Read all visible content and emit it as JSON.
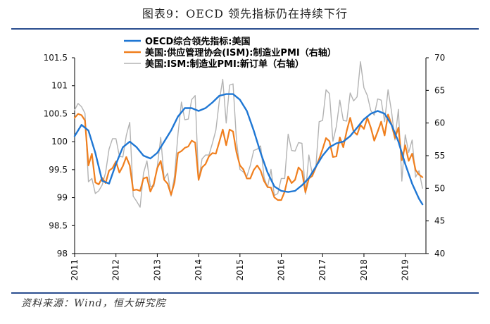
{
  "title": "图表9：OECD 领先指标仍在持续下行",
  "source": "资料来源：Wind，恒大研究院",
  "chart_data": {
    "type": "line",
    "title": "图表9：OECD 领先指标仍在持续下行",
    "x_axis": {
      "type": "date",
      "range": [
        "2011-01",
        "2019-07"
      ],
      "tick_labels": [
        "2011",
        "2012",
        "2013",
        "2014",
        "2015",
        "2016",
        "2017",
        "2018",
        "2019"
      ]
    },
    "y_left": {
      "range": [
        98,
        101.5
      ],
      "ticks": [
        "98",
        "98.5",
        "99",
        "99.5",
        "100",
        "100.5",
        "101",
        "101.5"
      ]
    },
    "y_right": {
      "range": [
        40,
        70
      ],
      "ticks": [
        "40",
        "45",
        "50",
        "55",
        "60",
        "65",
        "70"
      ]
    },
    "legend_position": "top-left",
    "grid": false,
    "colors": {
      "oecd": "#1f77d4",
      "ism_pmi": "#f07f1e",
      "new_orders": "#b3b3b3"
    },
    "series": [
      {
        "name": "OECD综合领先指标:美国",
        "axis": "left",
        "color": "#1f77d4",
        "x": [
          "2011-01",
          "2011-03",
          "2011-05",
          "2011-07",
          "2011-09",
          "2011-11",
          "2012-01",
          "2012-03",
          "2012-05",
          "2012-07",
          "2012-09",
          "2012-11",
          "2013-01",
          "2013-03",
          "2013-05",
          "2013-07",
          "2013-09",
          "2013-11",
          "2014-01",
          "2014-03",
          "2014-05",
          "2014-07",
          "2014-09",
          "2014-11",
          "2015-01",
          "2015-03",
          "2015-05",
          "2015-07",
          "2015-09",
          "2015-11",
          "2016-01",
          "2016-03",
          "2016-05",
          "2016-07",
          "2016-09",
          "2016-11",
          "2017-01",
          "2017-03",
          "2017-05",
          "2017-07",
          "2017-09",
          "2017-11",
          "2018-01",
          "2018-03",
          "2018-05",
          "2018-07",
          "2018-09",
          "2018-11",
          "2019-01",
          "2019-03",
          "2019-05",
          "2019-06"
        ],
        "values": [
          100.1,
          100.3,
          100.2,
          99.8,
          99.3,
          99.25,
          99.6,
          99.9,
          100.0,
          99.9,
          99.75,
          99.7,
          99.8,
          100.0,
          100.2,
          100.45,
          100.6,
          100.6,
          100.55,
          100.6,
          100.7,
          100.82,
          100.85,
          100.85,
          100.75,
          100.55,
          100.2,
          99.8,
          99.45,
          99.2,
          99.12,
          99.1,
          99.12,
          99.22,
          99.35,
          99.55,
          99.75,
          99.9,
          99.97,
          100.0,
          100.1,
          100.25,
          100.4,
          100.5,
          100.55,
          100.5,
          100.3,
          100.0,
          99.6,
          99.25,
          98.98,
          98.88
        ]
      },
      {
        "name": "美国:供应管理协会(ISM):制造业PMI（右轴）",
        "axis": "right",
        "color": "#f07f1e",
        "x": [
          "2011-01",
          "2011-02",
          "2011-03",
          "2011-04",
          "2011-05",
          "2011-06",
          "2011-07",
          "2011-08",
          "2011-09",
          "2011-10",
          "2011-11",
          "2011-12",
          "2012-01",
          "2012-02",
          "2012-03",
          "2012-04",
          "2012-05",
          "2012-06",
          "2012-07",
          "2012-08",
          "2012-09",
          "2012-10",
          "2012-11",
          "2012-12",
          "2013-01",
          "2013-02",
          "2013-03",
          "2013-04",
          "2013-05",
          "2013-06",
          "2013-07",
          "2013-08",
          "2013-09",
          "2013-10",
          "2013-11",
          "2013-12",
          "2014-01",
          "2014-02",
          "2014-03",
          "2014-04",
          "2014-05",
          "2014-06",
          "2014-07",
          "2014-08",
          "2014-09",
          "2014-10",
          "2014-11",
          "2014-12",
          "2015-01",
          "2015-02",
          "2015-03",
          "2015-04",
          "2015-05",
          "2015-06",
          "2015-07",
          "2015-08",
          "2015-09",
          "2015-10",
          "2015-11",
          "2015-12",
          "2016-01",
          "2016-02",
          "2016-03",
          "2016-04",
          "2016-05",
          "2016-06",
          "2016-07",
          "2016-08",
          "2016-09",
          "2016-10",
          "2016-11",
          "2016-12",
          "2017-01",
          "2017-02",
          "2017-03",
          "2017-04",
          "2017-05",
          "2017-06",
          "2017-07",
          "2017-08",
          "2017-09",
          "2017-10",
          "2017-11",
          "2017-12",
          "2018-01",
          "2018-02",
          "2018-03",
          "2018-04",
          "2018-05",
          "2018-06",
          "2018-07",
          "2018-08",
          "2018-09",
          "2018-10",
          "2018-11",
          "2018-12",
          "2019-01",
          "2019-02",
          "2019-03",
          "2019-04",
          "2019-05",
          "2019-06"
        ],
        "values": [
          60.8,
          61.4,
          61.2,
          60.4,
          53.5,
          55.3,
          50.9,
          50.6,
          51.6,
          50.8,
          52.7,
          53.1,
          54.1,
          52.4,
          53.4,
          54.8,
          53.5,
          49.7,
          49.8,
          49.6,
          51.5,
          51.7,
          49.5,
          50.7,
          53.1,
          54.2,
          51.3,
          50.7,
          49.0,
          50.9,
          55.4,
          55.7,
          56.2,
          56.4,
          57.3,
          57.0,
          51.3,
          53.2,
          53.7,
          54.9,
          55.4,
          55.3,
          57.1,
          59.0,
          56.6,
          59.0,
          58.7,
          55.5,
          53.5,
          52.9,
          51.5,
          51.5,
          52.8,
          53.5,
          52.7,
          51.1,
          50.2,
          50.1,
          48.6,
          48.2,
          48.2,
          49.5,
          51.8,
          50.8,
          51.3,
          53.2,
          52.6,
          49.4,
          51.5,
          51.9,
          53.2,
          54.5,
          56.0,
          57.7,
          57.2,
          54.8,
          54.9,
          57.8,
          56.3,
          58.8,
          60.8,
          58.7,
          58.2,
          59.7,
          59.1,
          60.8,
          59.3,
          57.3,
          58.7,
          60.2,
          58.1,
          61.3,
          59.8,
          57.7,
          59.3,
          54.3,
          56.6,
          54.2,
          55.3,
          52.8,
          52.1,
          51.7
        ]
      },
      {
        "name": "美国:ISM:制造业PMI:新订单（右轴）",
        "axis": "right",
        "color": "#b3b3b3",
        "x": [
          "2011-01",
          "2011-02",
          "2011-03",
          "2011-04",
          "2011-05",
          "2011-06",
          "2011-07",
          "2011-08",
          "2011-09",
          "2011-10",
          "2011-11",
          "2011-12",
          "2012-01",
          "2012-02",
          "2012-03",
          "2012-04",
          "2012-05",
          "2012-06",
          "2012-07",
          "2012-08",
          "2012-09",
          "2012-10",
          "2012-11",
          "2012-12",
          "2013-01",
          "2013-02",
          "2013-03",
          "2013-04",
          "2013-05",
          "2013-06",
          "2013-07",
          "2013-08",
          "2013-09",
          "2013-10",
          "2013-11",
          "2013-12",
          "2014-01",
          "2014-02",
          "2014-03",
          "2014-04",
          "2014-05",
          "2014-06",
          "2014-07",
          "2014-08",
          "2014-09",
          "2014-10",
          "2014-11",
          "2014-12",
          "2015-01",
          "2015-02",
          "2015-03",
          "2015-04",
          "2015-05",
          "2015-06",
          "2015-07",
          "2015-08",
          "2015-09",
          "2015-10",
          "2015-11",
          "2015-12",
          "2016-01",
          "2016-02",
          "2016-03",
          "2016-04",
          "2016-05",
          "2016-06",
          "2016-07",
          "2016-08",
          "2016-09",
          "2016-10",
          "2016-11",
          "2016-12",
          "2017-01",
          "2017-02",
          "2017-03",
          "2017-04",
          "2017-05",
          "2017-06",
          "2017-07",
          "2017-08",
          "2017-09",
          "2017-10",
          "2017-11",
          "2017-12",
          "2018-01",
          "2018-02",
          "2018-03",
          "2018-04",
          "2018-05",
          "2018-06",
          "2018-07",
          "2018-08",
          "2018-09",
          "2018-10",
          "2018-11",
          "2018-12",
          "2019-01",
          "2019-02",
          "2019-03",
          "2019-04",
          "2019-05",
          "2019-06"
        ],
        "values": [
          62.0,
          63.0,
          62.5,
          61.5,
          51.0,
          51.5,
          49.2,
          49.6,
          50.5,
          52.4,
          56.0,
          57.6,
          57.6,
          54.9,
          54.8,
          58.1,
          60.1,
          48.8,
          48.0,
          47.1,
          52.3,
          54.2,
          50.3,
          50.3,
          53.3,
          57.8,
          51.4,
          52.3,
          48.8,
          51.9,
          58.3,
          63.2,
          60.5,
          60.6,
          63.6,
          64.2,
          51.2,
          54.5,
          55.1,
          55.1,
          56.9,
          58.9,
          63.4,
          66.7,
          60.0,
          65.8,
          66.0,
          57.3,
          52.9,
          52.5,
          51.8,
          53.5,
          55.8,
          56.0,
          56.5,
          51.7,
          50.1,
          52.9,
          48.9,
          49.2,
          51.5,
          51.5,
          58.3,
          55.8,
          55.7,
          57.0,
          56.9,
          49.1,
          55.1,
          52.1,
          53.0,
          60.2,
          60.4,
          65.1,
          64.5,
          57.2,
          59.5,
          63.5,
          60.4,
          60.3,
          64.6,
          63.4,
          64.0,
          69.4,
          65.4,
          64.2,
          61.9,
          61.2,
          63.7,
          63.5,
          60.2,
          65.1,
          61.8,
          57.4,
          62.1,
          51.1,
          58.2,
          55.5,
          57.4,
          51.7,
          52.7,
          50.0
        ]
      }
    ],
    "legend": [
      "OECD综合领先指标:美国",
      "美国:供应管理协会(ISM):制造业PMI（右轴）",
      "美国:ISM:制造业PMI:新订单（右轴）"
    ]
  }
}
